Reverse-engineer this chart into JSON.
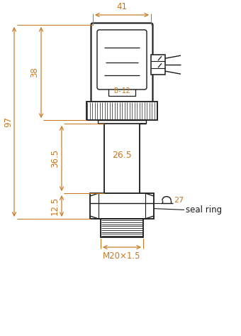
{
  "dim_color": "#c8781e",
  "line_color": "#1a1a1a",
  "bg_color": "#ffffff",
  "dims": {
    "width_41": "41",
    "height_97": "97",
    "height_38": "38",
    "height_36_5": "36.5",
    "height_12_5": "12.5",
    "label_26_5": "26.5",
    "label_27": "27",
    "label_M20": "M20×1.5",
    "label_B12": "B-12",
    "label_seal": "seal ring"
  },
  "figsize": [
    3.4,
    4.73
  ],
  "dpi": 100
}
